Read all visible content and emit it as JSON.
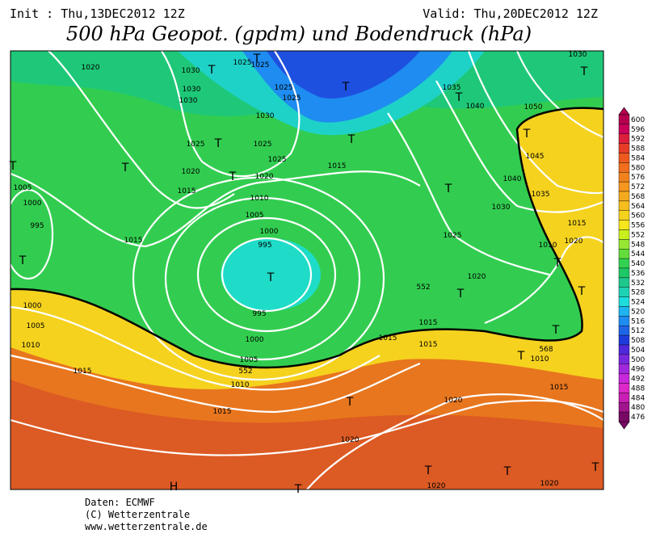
{
  "header": {
    "init": "Init : Thu,13DEC2012 12Z",
    "valid": "Valid: Thu,20DEC2012 12Z",
    "title": "500 hPa Geopot. (gpdm) und Bodendruck (hPa)"
  },
  "legend": {
    "levels": [
      600,
      596,
      592,
      588,
      584,
      580,
      576,
      572,
      568,
      564,
      560,
      556,
      552,
      548,
      544,
      540,
      536,
      532,
      528,
      524,
      520,
      516,
      512,
      508,
      504,
      500,
      496,
      492,
      488,
      484,
      480,
      476
    ],
    "colors": [
      "#b4004e",
      "#c8005a",
      "#dc1e3c",
      "#e63c28",
      "#ee5a1e",
      "#f06e1e",
      "#f0821e",
      "#f5961e",
      "#f5aa1e",
      "#f5be1e",
      "#f5d21e",
      "#f5e61e",
      "#c8f01e",
      "#96e632",
      "#64dc3c",
      "#32d250",
      "#1ec864",
      "#1ec88c",
      "#1ed2b4",
      "#1edcdc",
      "#1eb4f0",
      "#1e8cf0",
      "#1e64e6",
      "#1e3cdc",
      "#5028dc",
      "#7828dc",
      "#a028dc",
      "#c828dc",
      "#dc28c8",
      "#c81eb4",
      "#a0148c",
      "#780a64"
    ]
  },
  "map": {
    "labels": [
      "1020",
      "1030",
      "1030",
      "1030",
      "1025",
      "1025",
      "1025",
      "1025",
      "1030",
      "1025",
      "1025",
      "1025",
      "1020",
      "1020",
      "1015",
      "1015",
      "1010",
      "1005",
      "1000",
      "995",
      "1005",
      "1000",
      "995",
      "995",
      "1000",
      "1005",
      "1010",
      "1015",
      "1000",
      "1005",
      "1010",
      "1015",
      "1015",
      "1020",
      "1020",
      "1020",
      "1020",
      "1015",
      "1015",
      "1015",
      "1015",
      "1010",
      "1020",
      "1025",
      "1030",
      "1035",
      "1040",
      "1045",
      "1050",
      "1035",
      "1040",
      "1015",
      "1010",
      "1020",
      "1030",
      "552",
      "552",
      "568"
    ],
    "markers": [
      "T",
      "T",
      "T",
      "T",
      "T",
      "T",
      "T",
      "T",
      "T",
      "T",
      "T",
      "T",
      "T",
      "T",
      "T",
      "T",
      "T",
      "T",
      "T",
      "T",
      "T",
      "T",
      "T",
      "T",
      "H"
    ]
  },
  "footer": [
    "Daten: ECMWF",
    "(C) Wetterzentrale",
    "www.wetterzentrale.de"
  ]
}
